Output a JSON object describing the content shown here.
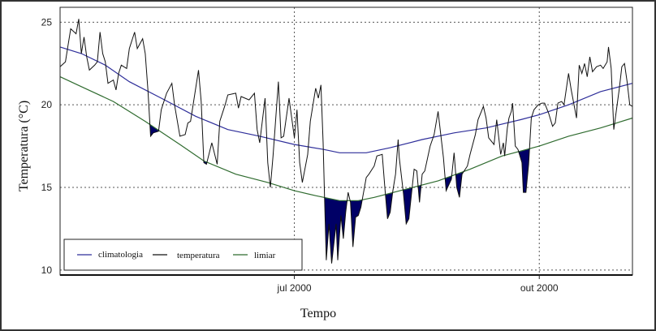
{
  "chart_data": {
    "type": "line",
    "xlabel": "Tempo",
    "ylabel": "Temperatura (°C)",
    "ylim": [
      9.7,
      25.9
    ],
    "xlim": [
      0,
      215
    ],
    "x_unit": "days since start of series",
    "yticks": [
      10,
      15,
      20,
      25
    ],
    "xticks": [
      {
        "day": 88,
        "label": "jul 2000"
      },
      {
        "day": 180,
        "label": "out 2000"
      }
    ],
    "grid": true,
    "legend": {
      "placement": "bottom-left",
      "entries": [
        "climatologia",
        "temperatura",
        "limiar"
      ]
    },
    "colors": {
      "climatologia": "#2e2e9a",
      "temperatura": "#111111",
      "limiar": "#2f6b2f",
      "fill": "#000066"
    },
    "series": [
      {
        "name": "climatologia",
        "x": [
          0,
          8,
          17,
          26,
          38,
          51,
          63,
          75,
          88,
          99,
          105,
          115,
          124,
          136,
          148,
          160,
          173,
          180,
          191,
          203,
          215
        ],
        "values": [
          23.5,
          23.1,
          22.4,
          21.4,
          20.4,
          19.3,
          18.5,
          18.1,
          17.6,
          17.3,
          17.1,
          17.1,
          17.4,
          17.9,
          18.3,
          18.6,
          19.1,
          19.4,
          20.0,
          20.8,
          21.3
        ]
      },
      {
        "name": "temperatura",
        "x": [
          0,
          2,
          3,
          4,
          6,
          7,
          8,
          9,
          10,
          11,
          13,
          14,
          15,
          16,
          17,
          18,
          20,
          21,
          22,
          23,
          25,
          26,
          28,
          29,
          31,
          32,
          33,
          34,
          35,
          37,
          38,
          40,
          42,
          43,
          45,
          47,
          48,
          49,
          52,
          53,
          54,
          55,
          57,
          59,
          60,
          62,
          63,
          66,
          67,
          68,
          71,
          73,
          74,
          75,
          77,
          78,
          79,
          80,
          82,
          83,
          84,
          86,
          88,
          89,
          90,
          91,
          93,
          94,
          95,
          96,
          97,
          98,
          98.8,
          99.4,
          100,
          101,
          102,
          103.7,
          104.3,
          105.5,
          106.4,
          107.3,
          108.2,
          109.1,
          110,
          111,
          112,
          113,
          115,
          116,
          118,
          119,
          121,
          122,
          123,
          124,
          125,
          126,
          127,
          127.4,
          129,
          130,
          131,
          132,
          133,
          134,
          135,
          136,
          137,
          139,
          140.5,
          142,
          143,
          144,
          145,
          147,
          148,
          149,
          150,
          151,
          153,
          154,
          156,
          157,
          159,
          160,
          161,
          163,
          164,
          165.5,
          166.5,
          167,
          168,
          168.6,
          169.5,
          170,
          171,
          172,
          173.5,
          174,
          175,
          176,
          177,
          178,
          179.6,
          181,
          182,
          183.5,
          185,
          186,
          187,
          188.4,
          189.3,
          191,
          192,
          194,
          195,
          196,
          197,
          198,
          199,
          200,
          201.5,
          203,
          204,
          205.5,
          206,
          207,
          208,
          210,
          211,
          212,
          213,
          214,
          215
        ],
        "values": [
          22.3,
          22.6,
          23.6,
          24.6,
          24.3,
          25.2,
          23.1,
          24.1,
          22.9,
          22.1,
          22.4,
          22.6,
          24.4,
          23.1,
          22.6,
          21.3,
          21.5,
          20.9,
          21.9,
          22.4,
          22.2,
          23.4,
          24.4,
          23.4,
          24.0,
          23.1,
          20.9,
          18.1,
          18.3,
          18.4,
          19.7,
          20.7,
          21.3,
          20.0,
          18.1,
          18.2,
          18.9,
          19.0,
          22.1,
          20.2,
          16.5,
          16.4,
          17.7,
          16.4,
          19.0,
          20.0,
          20.6,
          20.7,
          19.8,
          20.5,
          20.3,
          20.7,
          18.5,
          17.7,
          20.4,
          16.5,
          15.0,
          16.9,
          21.4,
          18.0,
          18.1,
          20.4,
          18.0,
          19.7,
          16.5,
          15.3,
          17.0,
          19.0,
          20.0,
          21.0,
          20.4,
          21.2,
          17.7,
          14.1,
          10.6,
          12.8,
          10.4,
          12.8,
          10.6,
          13.3,
          11.9,
          13.5,
          14.7,
          14.1,
          11.4,
          13.2,
          13.3,
          13.8,
          15.6,
          15.8,
          16.3,
          16.9,
          17.0,
          15.0,
          13.1,
          13.5,
          14.8,
          15.8,
          17.9,
          16.8,
          14.6,
          12.8,
          13.1,
          14.6,
          16.1,
          16.0,
          14.1,
          15.8,
          16.0,
          17.5,
          18.2,
          19.6,
          18.2,
          16.8,
          14.8,
          15.5,
          17.1,
          15.0,
          14.4,
          15.8,
          16.3,
          17.0,
          18.2,
          19.1,
          19.9,
          19.2,
          18.0,
          17.6,
          19.1,
          17.0,
          17.7,
          16.9,
          18.6,
          19.2,
          19.6,
          20.1,
          17.5,
          17.3,
          16.5,
          14.7,
          14.7,
          16.4,
          19.2,
          19.7,
          20.0,
          20.1,
          20.1,
          19.5,
          18.7,
          18.9,
          20.1,
          20.2,
          20.0,
          21.9,
          20.9,
          19.2,
          22.4,
          21.9,
          22.5,
          21.7,
          22.9,
          22.0,
          22.3,
          22.4,
          22.2,
          22.6,
          23.5,
          22.2,
          18.5,
          20.9,
          22.3,
          22.5,
          21.4,
          20.0,
          19.9
        ]
      },
      {
        "name": "limiar",
        "x": [
          0,
          8,
          20,
          32,
          45,
          54,
          66,
          78,
          88,
          96,
          105,
          112,
          118,
          130,
          142,
          154,
          166,
          180,
          191,
          203,
          215
        ],
        "values": [
          21.7,
          21.1,
          20.2,
          19.0,
          17.6,
          16.6,
          15.8,
          15.3,
          14.8,
          14.5,
          14.2,
          14.2,
          14.4,
          14.9,
          15.4,
          16.1,
          16.9,
          17.5,
          18.1,
          18.6,
          19.2
        ]
      }
    ]
  }
}
